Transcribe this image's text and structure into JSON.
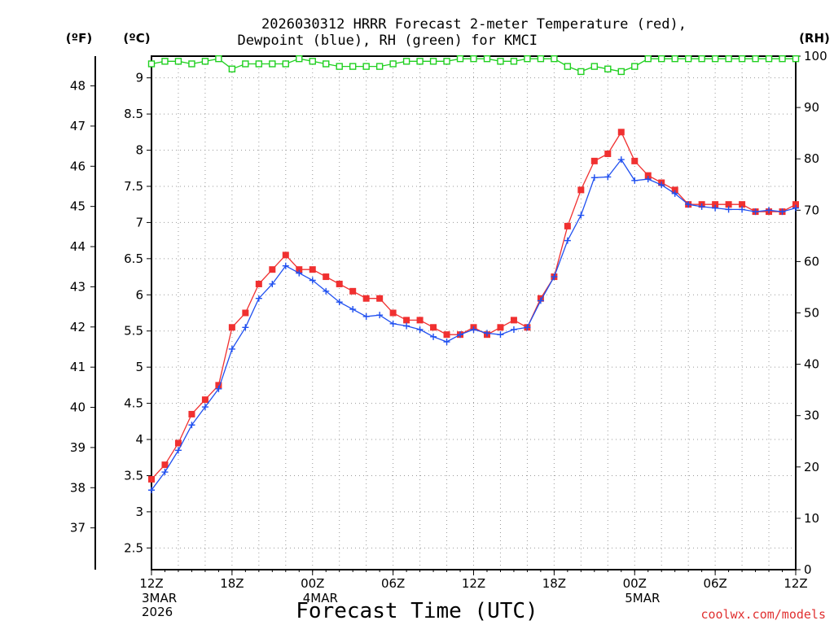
{
  "chart_data": {
    "type": "line",
    "title_line1": "2026030312 HRRR Forecast 2-meter Temperature (red),",
    "title_line2": "Dewpoint (blue), RH (green) for KMCI",
    "xlabel": "Forecast Time (UTC)",
    "y_left_outer_unit": "(ºF)",
    "y_left_unit": "(ºC)",
    "y_right_unit": "(RH)",
    "credit": "coolwx.com/models",
    "x_hours": [
      0,
      1,
      2,
      3,
      4,
      5,
      6,
      7,
      8,
      9,
      10,
      11,
      12,
      13,
      14,
      15,
      16,
      17,
      18,
      19,
      20,
      21,
      22,
      23,
      24,
      25,
      26,
      27,
      28,
      29,
      30,
      31,
      32,
      33,
      34,
      35,
      36,
      37,
      38,
      39,
      40,
      41,
      42,
      43,
      44,
      45,
      46,
      47,
      48
    ],
    "x_range": [
      0,
      48
    ],
    "x_ticks": [
      {
        "h": 0,
        "label": "12Z"
      },
      {
        "h": 6,
        "label": "18Z"
      },
      {
        "h": 12,
        "label": "00Z"
      },
      {
        "h": 18,
        "label": "06Z"
      },
      {
        "h": 24,
        "label": "12Z"
      },
      {
        "h": 30,
        "label": "18Z"
      },
      {
        "h": 36,
        "label": "00Z"
      },
      {
        "h": 42,
        "label": "06Z"
      },
      {
        "h": 48,
        "label": "12Z"
      }
    ],
    "date_labels": [
      {
        "h": 0,
        "lines": [
          "3MAR",
          "2026"
        ]
      },
      {
        "h": 12,
        "lines": [
          "4MAR"
        ]
      },
      {
        "h": 36,
        "lines": [
          "5MAR"
        ]
      }
    ],
    "y_left_range_c": [
      2.2,
      9.3
    ],
    "y_left_ticks_c": [
      "2.5",
      "3",
      "3.5",
      "4",
      "4.5",
      "5",
      "5.5",
      "6",
      "6.5",
      "7",
      "7.5",
      "8",
      "8.5",
      "9"
    ],
    "y_outer_ticks_f": [
      "37",
      "38",
      "39",
      "40",
      "41",
      "42",
      "43",
      "44",
      "45",
      "46",
      "47",
      "48"
    ],
    "y_right_range": [
      0,
      100
    ],
    "y_right_ticks": [
      "0",
      "10",
      "20",
      "30",
      "40",
      "50",
      "60",
      "70",
      "80",
      "90",
      "100"
    ],
    "grid": true,
    "series": [
      {
        "name": "Temperature",
        "unit": "C",
        "color": "#f03030",
        "marker": "filled-square",
        "values": [
          3.45,
          3.65,
          3.95,
          4.35,
          4.55,
          4.75,
          5.55,
          5.75,
          6.15,
          6.35,
          6.55,
          6.35,
          6.35,
          6.25,
          6.15,
          6.05,
          5.95,
          5.95,
          5.75,
          5.65,
          5.65,
          5.55,
          5.45,
          5.45,
          5.55,
          5.45,
          5.55,
          5.65,
          5.55,
          5.95,
          6.25,
          6.95,
          7.45,
          7.85,
          7.95,
          8.25,
          7.85,
          7.65,
          7.55,
          7.45,
          7.25,
          7.25,
          7.25,
          7.25,
          7.25,
          7.15,
          7.15,
          7.15,
          7.25
        ]
      },
      {
        "name": "Dewpoint",
        "unit": "C",
        "color": "#2050f0",
        "marker": "plus",
        "values": [
          3.3,
          3.55,
          3.85,
          4.2,
          4.45,
          4.7,
          5.25,
          5.55,
          5.95,
          6.15,
          6.4,
          6.3,
          6.2,
          6.05,
          5.9,
          5.8,
          5.7,
          5.72,
          5.6,
          5.57,
          5.52,
          5.42,
          5.35,
          5.45,
          5.52,
          5.47,
          5.45,
          5.52,
          5.55,
          5.92,
          6.25,
          6.75,
          7.1,
          7.62,
          7.63,
          7.87,
          7.58,
          7.6,
          7.52,
          7.4,
          7.25,
          7.22,
          7.2,
          7.18,
          7.18,
          7.15,
          7.17,
          7.15,
          7.2
        ]
      },
      {
        "name": "RH",
        "unit": "%",
        "color": "#20d020",
        "marker": "open-square",
        "values": [
          98.5,
          99,
          99,
          98.5,
          99,
          99.5,
          97.5,
          98.5,
          98.5,
          98.5,
          98.5,
          99.5,
          99,
          98.5,
          98,
          98,
          98,
          98,
          98.5,
          99,
          99,
          99,
          99,
          99.5,
          99.5,
          99.5,
          99,
          99,
          99.5,
          99.5,
          99.5,
          98,
          97,
          98,
          97.5,
          97,
          98,
          99.5,
          99.5,
          99.5,
          99.5,
          99.5,
          99.5,
          99.5,
          99.5,
          99.5,
          99.5,
          99.5,
          99.5
        ]
      }
    ]
  }
}
